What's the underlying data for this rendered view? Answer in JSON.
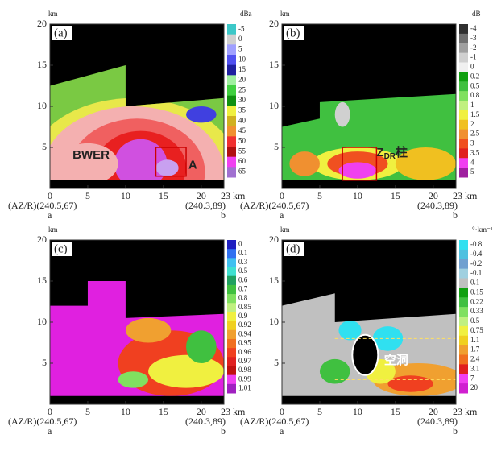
{
  "panels": [
    {
      "label": "(a)",
      "y_unit": "km",
      "y_ticks": [
        "20",
        "15",
        "10",
        "5"
      ],
      "x_ticks": [
        "0",
        "5",
        "10",
        "15",
        "20",
        "23 km"
      ],
      "left_caption": "(AZ/R)(240.5,67)",
      "right_caption": "(240.3,89)",
      "left_end": "a",
      "right_end": "b",
      "colorbar_unit": "dBz",
      "colorbar_labels": [
        "-5",
        "0",
        "5",
        "10",
        "15",
        "20",
        "25",
        "30",
        "35",
        "40",
        "45",
        "50",
        "55",
        "60",
        "65"
      ],
      "annotations": [
        "BWER",
        "A"
      ]
    },
    {
      "label": "(b)",
      "y_unit": "km",
      "y_ticks": [
        "20",
        "15",
        "10",
        "5"
      ],
      "x_ticks": [
        "0",
        "5",
        "10",
        "15",
        "20",
        "23 km"
      ],
      "left_caption": "(AZ/R)(240.5,67)",
      "right_caption": "(240.3,89)",
      "left_end": "a",
      "right_end": "b",
      "colorbar_unit": "dB",
      "colorbar_labels": [
        "-4",
        "-3",
        "-2",
        "-1",
        "0",
        "0.2",
        "0.5",
        "0.8",
        "1",
        "1.5",
        "2",
        "2.5",
        "3",
        "3.5",
        "4",
        "5"
      ],
      "column_label": {
        "main": "Z",
        "sub": "DR",
        "suffix": "柱"
      }
    },
    {
      "label": "(c)",
      "y_unit": "km",
      "y_ticks": [
        "20",
        "15",
        "10",
        "5"
      ],
      "x_ticks": [
        "0",
        "5",
        "10",
        "15",
        "20",
        "23 km"
      ],
      "left_caption": "(AZ/R)(240.5,67)",
      "right_caption": "(240.3,89)",
      "left_end": "a",
      "right_end": "b",
      "colorbar_labels": [
        "0",
        "0.1",
        "0.3",
        "0.5",
        "0.6",
        "0.7",
        "0.8",
        "0.85",
        "0.9",
        "0.92",
        "0.94",
        "0.95",
        "0.96",
        "0.97",
        "0.98",
        "0.99",
        "1.01"
      ]
    },
    {
      "label": "(d)",
      "y_unit": "km",
      "y_ticks": [
        "20",
        "15",
        "10",
        "5"
      ],
      "x_ticks": [
        "0",
        "5",
        "10",
        "15",
        "20",
        "23 km"
      ],
      "left_caption": "(AZ/R)(240.5,67)",
      "right_caption": "(240.3,89)",
      "left_end": "a",
      "right_end": "b",
      "colorbar_unit": "°·km⁻¹",
      "colorbar_labels": [
        "-0.8",
        "-0.4",
        "-0.2",
        "-0.1",
        "0.1",
        "0.15",
        "0.22",
        "0.33",
        "0.5",
        "0.75",
        "1.1",
        "1.7",
        "2.4",
        "3.1",
        "7",
        "20"
      ],
      "annotations": [
        "空洞"
      ]
    }
  ]
}
